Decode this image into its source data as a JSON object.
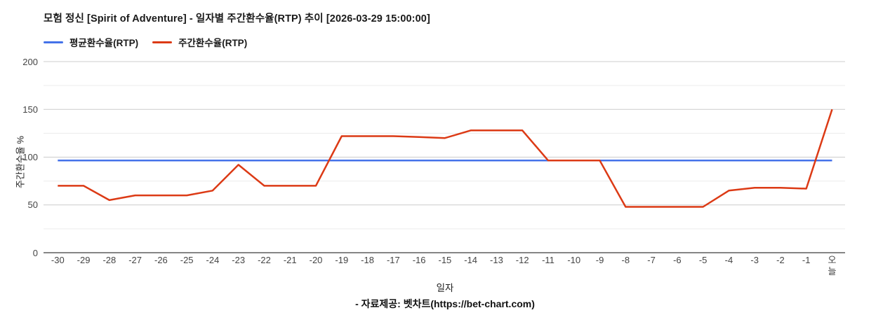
{
  "header": {
    "title": "모험 정신 [Spirit of Adventure] - 일자별 주간환수율(RTP) 추이 [2026-03-29 15:00:00]"
  },
  "chart_data": {
    "type": "line",
    "title": "모험 정신 [Spirit of Adventure] - 일자별 주간환수율(RTP) 추이 [2026-03-29 15:00:00]",
    "categories": [
      "-30",
      "-29",
      "-28",
      "-27",
      "-26",
      "-25",
      "-24",
      "-23",
      "-22",
      "-21",
      "-20",
      "-19",
      "-18",
      "-17",
      "-16",
      "-15",
      "-14",
      "-13",
      "-12",
      "-11",
      "-10",
      "-9",
      "-8",
      "-7",
      "-6",
      "-5",
      "-4",
      "-3",
      "-2",
      "-1",
      "오늘"
    ],
    "series": [
      {
        "name": "평균환수율(RTP)",
        "color": "#4472e9",
        "constant_value": 96.5
      },
      {
        "name": "주간환수율(RTP)",
        "color": "#dc3a15",
        "values": [
          70,
          70,
          55,
          60,
          60,
          60,
          65,
          92,
          70,
          70,
          70,
          122,
          122,
          122,
          121,
          120,
          128,
          128,
          128,
          96.5,
          96.5,
          96.5,
          48,
          48,
          48,
          48,
          65,
          68,
          68,
          67,
          150
        ]
      }
    ],
    "xlabel": "일자",
    "ylabel": "주간환수율 %",
    "ylim": [
      0,
      200
    ],
    "yticks": [
      0,
      50,
      100,
      150,
      200
    ],
    "minor_gridlines": [
      25,
      75,
      125,
      175
    ],
    "grid": true,
    "legend_position": "top-left"
  },
  "footer": {
    "caption": "- 자료제공: 벳차트(https://bet-chart.com)"
  }
}
